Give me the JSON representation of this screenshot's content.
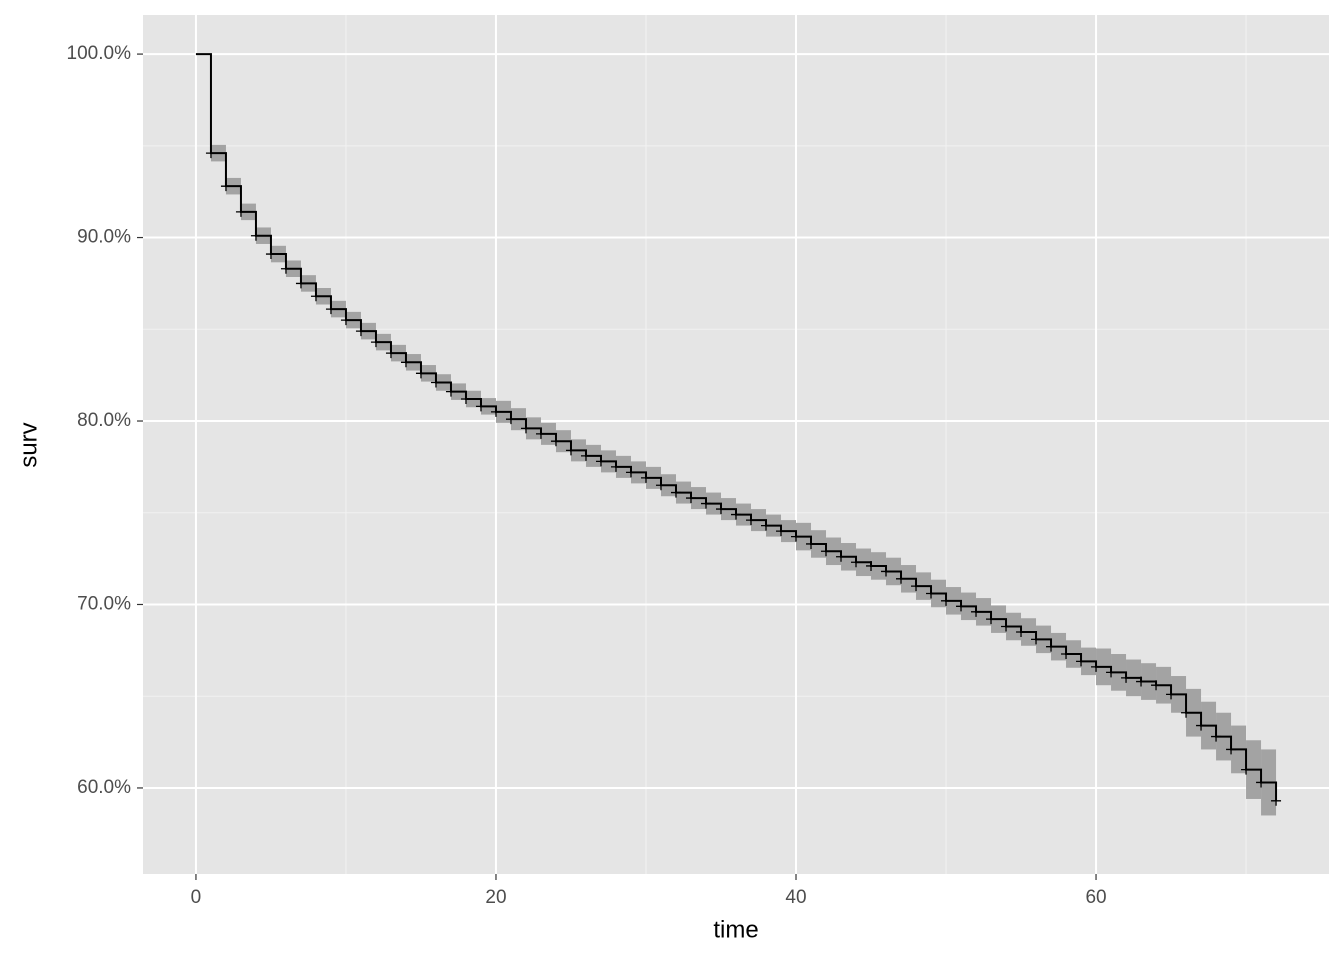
{
  "chart_data": {
    "type": "survival_step",
    "x_label": "time",
    "y_label": "surv",
    "x": [
      0,
      1,
      2,
      3,
      4,
      5,
      6,
      7,
      8,
      9,
      10,
      11,
      12,
      13,
      14,
      15,
      16,
      17,
      18,
      19,
      20,
      21,
      22,
      23,
      24,
      25,
      26,
      27,
      28,
      29,
      30,
      31,
      32,
      33,
      34,
      35,
      36,
      37,
      38,
      39,
      40,
      41,
      42,
      43,
      44,
      45,
      46,
      47,
      48,
      49,
      50,
      51,
      52,
      53,
      54,
      55,
      56,
      57,
      58,
      59,
      60,
      61,
      62,
      63,
      64,
      65,
      66,
      67,
      68,
      69,
      70,
      71,
      72
    ],
    "survival": [
      100,
      94.6,
      92.8,
      91.4,
      90.1,
      89.1,
      88.3,
      87.5,
      86.8,
      86.1,
      85.5,
      84.9,
      84.3,
      83.7,
      83.2,
      82.6,
      82.1,
      81.6,
      81.2,
      80.8,
      80.5,
      80.1,
      79.6,
      79.3,
      78.9,
      78.4,
      78.1,
      77.8,
      77.5,
      77.2,
      76.9,
      76.5,
      76.1,
      75.8,
      75.5,
      75.2,
      74.9,
      74.6,
      74.3,
      74.0,
      73.7,
      73.3,
      72.9,
      72.6,
      72.3,
      72.1,
      71.8,
      71.4,
      71.0,
      70.6,
      70.2,
      69.9,
      69.6,
      69.2,
      68.8,
      68.5,
      68.1,
      67.7,
      67.3,
      66.9,
      66.6,
      66.3,
      66.0,
      65.8,
      65.6,
      65.1,
      64.1,
      63.4,
      62.8,
      62.1,
      61.0,
      60.3,
      59.3
    ],
    "lower": [
      100,
      94.15,
      92.35,
      90.95,
      89.65,
      88.65,
      87.85,
      87.05,
      86.35,
      85.65,
      85.05,
      84.45,
      83.85,
      83.25,
      82.75,
      82.15,
      81.65,
      81.15,
      80.75,
      80.35,
      79.9,
      79.5,
      79.0,
      78.7,
      78.3,
      77.8,
      77.5,
      77.2,
      76.9,
      76.6,
      76.3,
      75.9,
      75.5,
      75.2,
      74.9,
      74.6,
      74.3,
      74.0,
      73.7,
      73.4,
      72.95,
      72.55,
      72.15,
      71.85,
      71.55,
      71.35,
      71.05,
      70.65,
      70.25,
      69.85,
      69.45,
      69.15,
      68.85,
      68.45,
      68.05,
      67.75,
      67.35,
      66.95,
      66.55,
      66.15,
      65.6,
      65.3,
      65.0,
      64.8,
      64.6,
      64.1,
      62.8,
      62.1,
      61.5,
      60.8,
      59.4,
      58.5,
      58.5
    ],
    "upper": [
      100,
      95.05,
      93.25,
      91.85,
      90.55,
      89.55,
      88.75,
      87.95,
      87.25,
      86.55,
      85.95,
      85.35,
      84.75,
      84.15,
      83.65,
      83.05,
      82.55,
      82.05,
      81.65,
      81.25,
      81.1,
      80.7,
      80.2,
      79.9,
      79.5,
      79.0,
      78.7,
      78.4,
      78.1,
      77.8,
      77.5,
      77.1,
      76.7,
      76.4,
      76.1,
      75.8,
      75.5,
      75.2,
      74.9,
      74.6,
      74.45,
      74.05,
      73.65,
      73.35,
      73.05,
      72.85,
      72.55,
      72.15,
      71.75,
      71.35,
      70.95,
      70.65,
      70.35,
      69.95,
      69.55,
      69.25,
      68.85,
      68.45,
      68.05,
      67.65,
      67.6,
      67.3,
      67.0,
      66.8,
      66.6,
      66.1,
      65.4,
      64.7,
      64.1,
      63.4,
      62.6,
      62.1,
      60.9
    ],
    "line_color": "#000000",
    "band_color": "#a3a3a3",
    "censor_marks": true,
    "xlim": [
      -3.53,
      75.53
    ],
    "xticks": [
      0,
      20,
      40,
      60
    ],
    "ylim": [
      55.31,
      102.13
    ],
    "yticks": [
      {
        "value": 60,
        "label": "60.0%"
      },
      {
        "value": 70,
        "label": "70.0%"
      },
      {
        "value": 80,
        "label": "80.0%"
      },
      {
        "value": 90,
        "label": "90.0%"
      },
      {
        "value": 100,
        "label": "100.0%"
      }
    ],
    "grid": true
  }
}
